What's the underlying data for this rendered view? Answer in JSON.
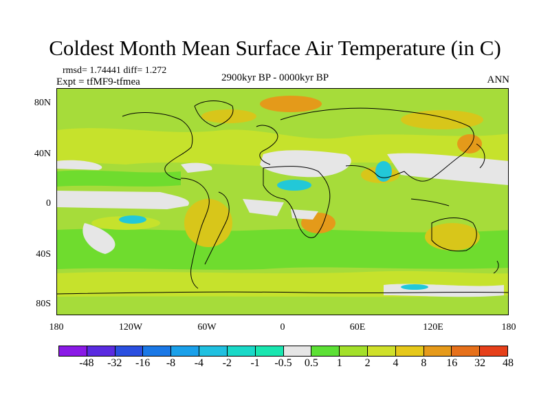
{
  "title": "Coldest Month Mean Surface Air Temperature (in C)",
  "stats": "rmsd= 1.74441 diff= 1.272",
  "experiment": "Expt = tfMF9-tfmea",
  "period": "2900kyr BP - 0000kyr BP",
  "season": "ANN",
  "axes": {
    "y_ticks": [
      "80N",
      "40N",
      "0",
      "40S",
      "80S"
    ],
    "x_ticks": [
      "180",
      "120W",
      "60W",
      "0",
      "60E",
      "120E",
      "180"
    ]
  },
  "colorbar": {
    "labels": [
      "-48",
      "-32",
      "-16",
      "-8",
      "-4",
      "-2",
      "-1",
      "-0.5",
      "0.5",
      "1",
      "2",
      "4",
      "8",
      "16",
      "32",
      "48"
    ],
    "colors": [
      "#8a1ae6",
      "#5a2be0",
      "#2a4fe0",
      "#1a78e6",
      "#1aa0ea",
      "#20c0e0",
      "#1ad9c8",
      "#19e6b0",
      "#e6e6e6",
      "#5ce035",
      "#a3e02a",
      "#cfe02a",
      "#e6c81a",
      "#e69a1a",
      "#e6701a",
      "#e6401a"
    ]
  },
  "palette": {
    "field_green": "#a6dc3a",
    "field_lightgreen": "#c6e22c",
    "field_bright": "#6fdc2e",
    "field_yellow": "#d8c61a",
    "field_orange": "#e49a1a",
    "field_white": "#e6e6e6",
    "field_cyan": "#22c8d8"
  }
}
